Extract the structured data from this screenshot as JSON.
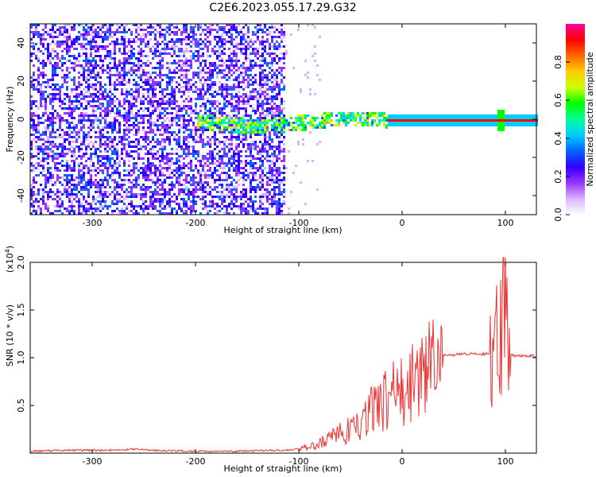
{
  "title": "C2E6.2023.055.17.29.G32",
  "chart_data": [
    {
      "type": "heatmap",
      "xlabel": "Height of straight line (km)",
      "ylabel": "Frequency (Hz)",
      "xlim": [
        -360,
        130
      ],
      "ylim": [
        -50,
        50
      ],
      "x_ticks": [
        -300,
        -200,
        -100,
        0,
        100
      ],
      "y_ticks": [
        -40,
        -20,
        0,
        20,
        40
      ],
      "colorbar": {
        "label": "Normalized spectral amplitude",
        "ticks": [
          "0.0",
          "0.2",
          "0.4",
          "0.6",
          "0.8"
        ],
        "range": [
          0,
          1
        ],
        "colormap": [
          "#ffffff",
          "#d9b3ff",
          "#9933ff",
          "#3300ff",
          "#0066ff",
          "#00ccff",
          "#00ff99",
          "#00ff00",
          "#ccff00",
          "#ffcc00",
          "#ff6600",
          "#ff0000",
          "#ff0099"
        ]
      },
      "features": {
        "noise_region_x": [
          -360,
          -115
        ],
        "central_line_freq": 0,
        "strong_line_x": [
          -15,
          130
        ],
        "vertical_burst_x": 95
      }
    },
    {
      "type": "line",
      "xlabel": "Height of straight line (km)",
      "ylabel": "SNR (10 * v/v)",
      "y_multiplier": "(x10",
      "y_multiplier_exp": "4",
      "xlim": [
        -360,
        130
      ],
      "ylim": [
        0,
        2.0
      ],
      "x_ticks": [
        -300,
        -200,
        -100,
        0,
        100
      ],
      "y_ticks": [
        "0.5",
        "1.0",
        "1.5",
        "2.0"
      ],
      "color": "#ee3333",
      "series": [
        {
          "x": [
            -360,
            -320,
            -280,
            -260,
            -240,
            -200,
            -160,
            -130,
            -110,
            -100,
            -90,
            -80,
            -70,
            -60,
            -50,
            -40,
            -30,
            -20,
            -10,
            0,
            10,
            20,
            30,
            40,
            50,
            60,
            70,
            80,
            85,
            90,
            95,
            100,
            105,
            110,
            120,
            130
          ],
          "y": [
            0.02,
            0.03,
            0.03,
            0.04,
            0.03,
            0.02,
            0.02,
            0.03,
            0.03,
            0.05,
            0.06,
            0.1,
            0.15,
            0.2,
            0.25,
            0.3,
            0.45,
            0.55,
            0.6,
            0.65,
            0.75,
            0.88,
            0.97,
            1.02,
            1.03,
            1.04,
            1.04,
            1.04,
            1.05,
            1.04,
            1.1,
            1.7,
            1.03,
            1.02,
            1.02,
            1.02
          ]
        }
      ]
    }
  ]
}
